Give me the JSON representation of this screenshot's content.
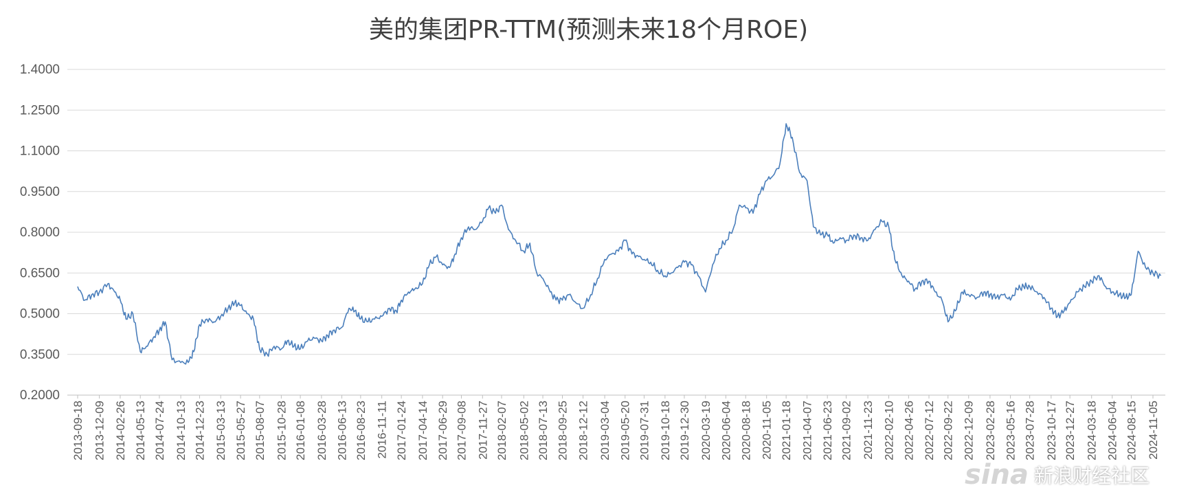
{
  "chart_data": {
    "type": "line",
    "title": "美的集团PR-TTM(预测未来18个月ROE)",
    "xlabel": "",
    "ylabel": "",
    "ylim": [
      0.2,
      1.4
    ],
    "yticks": [
      "0.2000",
      "0.3500",
      "0.5000",
      "0.6500",
      "0.8000",
      "0.9500",
      "1.1000",
      "1.2500",
      "1.4000"
    ],
    "grid": true,
    "legend": "none",
    "colors": {
      "line": "#4a7ebb",
      "grid": "#d9d9d9",
      "text": "#595959",
      "title": "#404040"
    },
    "xticks": [
      "2013-09-18",
      "2013-12-09",
      "2014-02-26",
      "2014-05-13",
      "2014-07-24",
      "2014-10-13",
      "2014-12-23",
      "2015-03-13",
      "2015-05-27",
      "2015-08-07",
      "2015-10-28",
      "2016-01-08",
      "2016-03-28",
      "2016-06-13",
      "2016-08-23",
      "2016-11-11",
      "2017-01-24",
      "2017-04-14",
      "2017-06-29",
      "2017-09-08",
      "2017-11-27",
      "2018-02-07",
      "2018-05-02",
      "2018-07-13",
      "2018-09-25",
      "2018-12-12",
      "2019-03-04",
      "2019-05-20",
      "2019-07-31",
      "2019-10-18",
      "2019-12-30",
      "2020-03-19",
      "2020-06-04",
      "2020-08-18",
      "2020-11-05",
      "2021-01-18",
      "2021-04-07",
      "2021-06-23",
      "2021-09-02",
      "2021-11-23",
      "2022-02-10",
      "2022-04-26",
      "2022-07-12",
      "2022-09-22",
      "2022-12-09",
      "2023-02-28",
      "2023-05-16",
      "2023-07-28",
      "2023-10-17",
      "2023-12-27",
      "2024-03-18",
      "2024-06-04",
      "2024-08-15",
      "2024-11-05"
    ],
    "series": [
      {
        "x": [
          "2013-09-18",
          "2013-10-15",
          "2013-11-10",
          "2013-12-09",
          "2014-01-10",
          "2014-02-05",
          "2014-02-26",
          "2014-03-20",
          "2014-04-15",
          "2014-05-13",
          "2014-06-05",
          "2014-06-30",
          "2014-07-24",
          "2014-08-15",
          "2014-09-10",
          "2014-10-13",
          "2014-11-10",
          "2014-12-01",
          "2014-12-23",
          "2015-01-20",
          "2015-02-15",
          "2015-03-13",
          "2015-04-10",
          "2015-05-05",
          "2015-05-27",
          "2015-06-20",
          "2015-07-15",
          "2015-08-07",
          "2015-09-05",
          "2015-10-01",
          "2015-10-28",
          "2015-11-20",
          "2015-12-15",
          "2016-01-08",
          "2016-02-05",
          "2016-03-01",
          "2016-03-28",
          "2016-04-20",
          "2016-05-15",
          "2016-06-13",
          "2016-07-10",
          "2016-08-01",
          "2016-08-23",
          "2016-09-20",
          "2016-10-15",
          "2016-11-11",
          "2016-12-10",
          "2017-01-05",
          "2017-01-24",
          "2017-02-20",
          "2017-03-15",
          "2017-04-14",
          "2017-05-10",
          "2017-06-05",
          "2017-06-29",
          "2017-07-25",
          "2017-08-15",
          "2017-09-08",
          "2017-10-05",
          "2017-10-30",
          "2017-11-27",
          "2017-12-20",
          "2018-01-15",
          "2018-02-07",
          "2018-03-05",
          "2018-04-01",
          "2018-05-02",
          "2018-05-25",
          "2018-06-20",
          "2018-07-13",
          "2018-08-10",
          "2018-09-01",
          "2018-09-25",
          "2018-10-20",
          "2018-11-15",
          "2018-12-12",
          "2019-01-10",
          "2019-02-05",
          "2019-03-04",
          "2019-03-30",
          "2019-04-25",
          "2019-05-20",
          "2019-06-15",
          "2019-07-10",
          "2019-07-31",
          "2019-08-25",
          "2019-09-20",
          "2019-10-18",
          "2019-11-10",
          "2019-12-05",
          "2019-12-30",
          "2020-01-25",
          "2020-02-20",
          "2020-03-19",
          "2020-04-15",
          "2020-05-10",
          "2020-06-04",
          "2020-07-01",
          "2020-07-25",
          "2020-08-18",
          "2020-09-15",
          "2020-10-10",
          "2020-11-05",
          "2020-12-01",
          "2020-12-25",
          "2021-01-18",
          "2021-02-10",
          "2021-03-10",
          "2021-04-07",
          "2021-05-01",
          "2021-05-28",
          "2021-06-23",
          "2021-07-15",
          "2021-08-10",
          "2021-09-02",
          "2021-10-01",
          "2021-10-28",
          "2021-11-23",
          "2021-12-20",
          "2022-01-15",
          "2022-02-10",
          "2022-03-05",
          "2022-04-01",
          "2022-04-26",
          "2022-05-20",
          "2022-06-15",
          "2022-07-12",
          "2022-08-05",
          "2022-08-30",
          "2022-09-22",
          "2022-10-20",
          "2022-11-15",
          "2022-12-09",
          "2023-01-10",
          "2023-02-05",
          "2023-02-28",
          "2023-03-25",
          "2023-04-20",
          "2023-05-16",
          "2023-06-10",
          "2023-07-05",
          "2023-07-28",
          "2023-08-25",
          "2023-09-20",
          "2023-10-17",
          "2023-11-10",
          "2023-12-05",
          "2023-12-27",
          "2024-01-25",
          "2024-02-20",
          "2024-03-18",
          "2024-04-15",
          "2024-05-10",
          "2024-06-04",
          "2024-07-01",
          "2024-07-25",
          "2024-08-15",
          "2024-09-10",
          "2024-10-08",
          "2024-11-05",
          "2024-12-05"
        ],
        "values": [
          0.6,
          0.55,
          0.57,
          0.58,
          0.61,
          0.58,
          0.55,
          0.48,
          0.5,
          0.36,
          0.38,
          0.41,
          0.44,
          0.47,
          0.33,
          0.32,
          0.32,
          0.36,
          0.46,
          0.48,
          0.47,
          0.49,
          0.52,
          0.54,
          0.53,
          0.5,
          0.48,
          0.37,
          0.35,
          0.38,
          0.37,
          0.4,
          0.38,
          0.37,
          0.4,
          0.41,
          0.4,
          0.42,
          0.44,
          0.45,
          0.52,
          0.51,
          0.48,
          0.47,
          0.48,
          0.49,
          0.52,
          0.51,
          0.55,
          0.58,
          0.59,
          0.61,
          0.68,
          0.71,
          0.68,
          0.67,
          0.72,
          0.78,
          0.82,
          0.81,
          0.84,
          0.89,
          0.87,
          0.9,
          0.81,
          0.77,
          0.73,
          0.76,
          0.65,
          0.63,
          0.58,
          0.55,
          0.55,
          0.57,
          0.54,
          0.52,
          0.57,
          0.63,
          0.7,
          0.72,
          0.73,
          0.77,
          0.72,
          0.71,
          0.7,
          0.69,
          0.66,
          0.64,
          0.65,
          0.67,
          0.69,
          0.68,
          0.64,
          0.58,
          0.68,
          0.74,
          0.77,
          0.81,
          0.9,
          0.89,
          0.87,
          0.94,
          0.99,
          1.01,
          1.05,
          1.2,
          1.15,
          1.02,
          0.99,
          0.82,
          0.79,
          0.79,
          0.76,
          0.78,
          0.77,
          0.79,
          0.78,
          0.77,
          0.81,
          0.84,
          0.82,
          0.7,
          0.64,
          0.62,
          0.59,
          0.62,
          0.62,
          0.58,
          0.55,
          0.47,
          0.51,
          0.58,
          0.57,
          0.56,
          0.58,
          0.57,
          0.56,
          0.57,
          0.55,
          0.59,
          0.6,
          0.6,
          0.58,
          0.56,
          0.52,
          0.49,
          0.51,
          0.54,
          0.58,
          0.6,
          0.62,
          0.64,
          0.6,
          0.58,
          0.57,
          0.56,
          0.57,
          0.73,
          0.67,
          0.65,
          0.64
        ]
      }
    ]
  },
  "watermark": {
    "logo": "sina",
    "text": "新浪财经社区"
  }
}
